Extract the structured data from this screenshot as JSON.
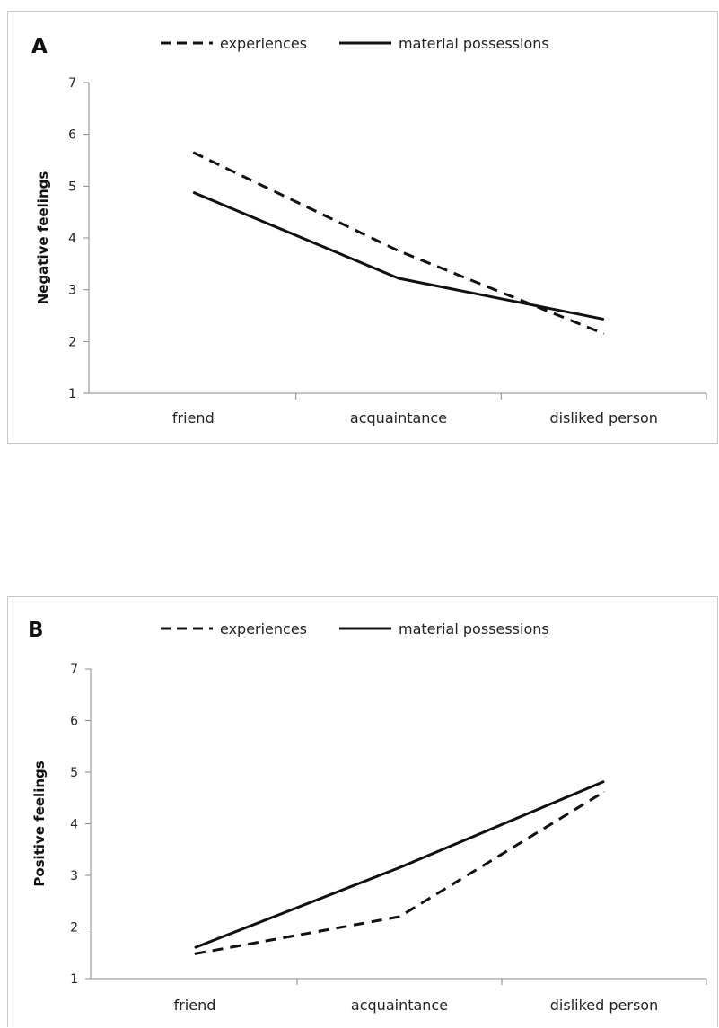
{
  "chart_data": [
    {
      "panel": "A",
      "type": "line",
      "categories": [
        "friend",
        "acquaintance",
        "disliked person"
      ],
      "ylabel": "Negative feelings",
      "ylim": [
        1,
        7
      ],
      "yticks": [
        "1",
        "2",
        "3",
        "4",
        "5",
        "6",
        "7"
      ],
      "legend": "top",
      "grid": false,
      "series": [
        {
          "name": "experiences",
          "style": "dashed",
          "values": [
            5.65,
            3.75,
            2.15
          ]
        },
        {
          "name": "material possessions",
          "style": "solid",
          "values": [
            4.88,
            3.22,
            2.43
          ]
        }
      ]
    },
    {
      "panel": "B",
      "type": "line",
      "categories": [
        "friend",
        "acquaintance",
        "disliked person"
      ],
      "ylabel": "Positive feelings",
      "ylim": [
        1,
        7
      ],
      "yticks": [
        "1",
        "2",
        "3",
        "4",
        "5",
        "6",
        "7"
      ],
      "legend": "top",
      "grid": false,
      "series": [
        {
          "name": "experiences",
          "style": "dashed",
          "values": [
            1.48,
            2.2,
            4.62
          ]
        },
        {
          "name": "material possessions",
          "style": "solid",
          "values": [
            1.6,
            3.15,
            4.82
          ]
        }
      ]
    }
  ],
  "colors": {
    "line": "#111111",
    "axis": "#888888",
    "border": "#c8c8c8"
  }
}
